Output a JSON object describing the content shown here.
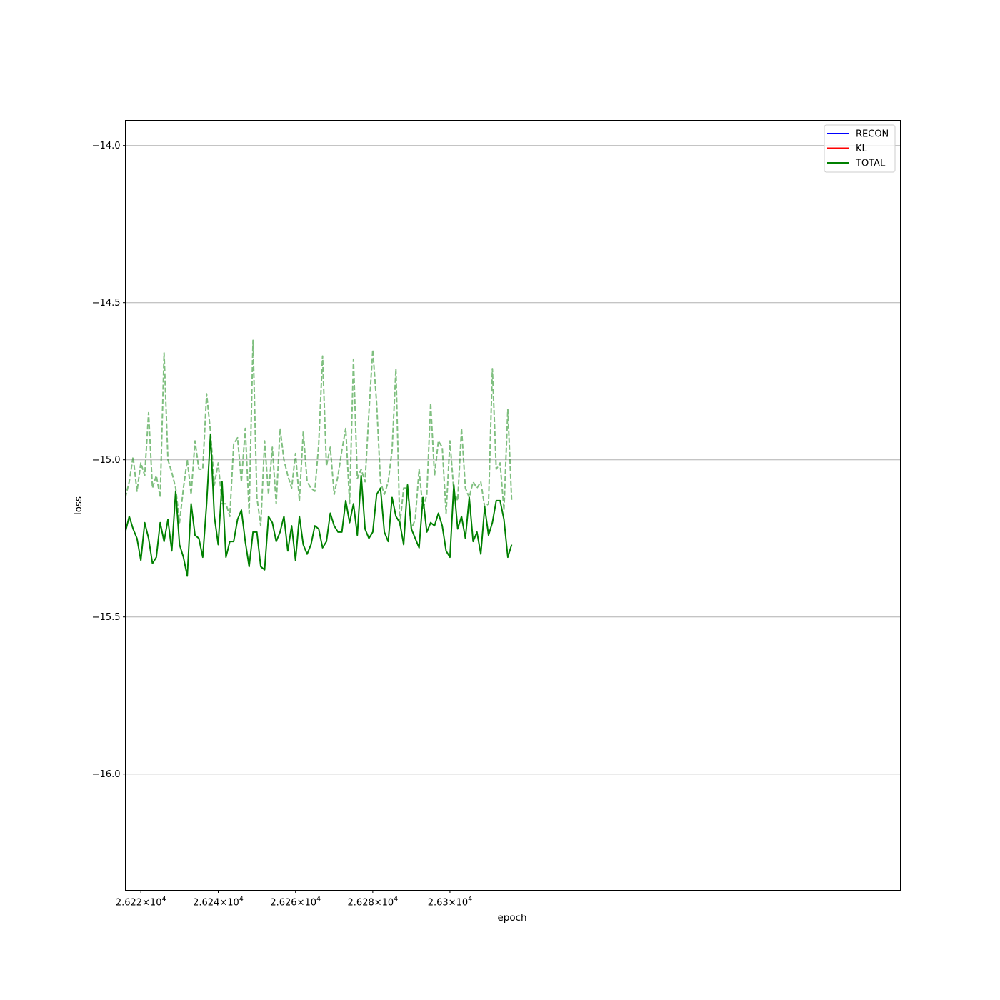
{
  "chart_data": {
    "type": "line",
    "xscale": "log",
    "xlabel": "epoch",
    "ylabel": "loss",
    "xlim": [
      26216,
      26417
    ],
    "ylim": [
      -16.37,
      -13.92
    ],
    "grid": {
      "x": false,
      "y": true
    },
    "legend_position": "top-right",
    "x_ticks": [
      {
        "value": 26220,
        "mantissa": "2.622"
      },
      {
        "value": 26240,
        "mantissa": "2.624"
      },
      {
        "value": 26260,
        "mantissa": "2.626"
      },
      {
        "value": 26280,
        "mantissa": "2.628"
      },
      {
        "value": 26300,
        "mantissa": "2.63"
      }
    ],
    "x_tick_suffix": "×10",
    "x_tick_exponent": "4",
    "y_ticks": [
      {
        "value": -14.0,
        "label": "−14.0"
      },
      {
        "value": -14.5,
        "label": "−14.5"
      },
      {
        "value": -15.0,
        "label": "−15.0"
      },
      {
        "value": -15.5,
        "label": "−15.5"
      },
      {
        "value": -16.0,
        "label": "−16.0"
      }
    ],
    "legend": [
      {
        "name": "RECON",
        "color": "#0000ff"
      },
      {
        "name": "KL",
        "color": "#ff0000"
      },
      {
        "name": "TOTAL",
        "color": "#008000"
      }
    ],
    "x_start": 26216,
    "x_step": 1,
    "series": [
      {
        "name": "TOTAL",
        "color": "#008000",
        "style": "solid",
        "values": [
          -15.23,
          -15.18,
          -15.22,
          -15.25,
          -15.32,
          -15.2,
          -15.25,
          -15.33,
          -15.31,
          -15.2,
          -15.26,
          -15.19,
          -15.29,
          -15.1,
          -15.27,
          -15.31,
          -15.37,
          -15.14,
          -15.24,
          -15.25,
          -15.31,
          -15.14,
          -14.92,
          -15.18,
          -15.27,
          -15.07,
          -15.31,
          -15.26,
          -15.26,
          -15.19,
          -15.16,
          -15.26,
          -15.34,
          -15.23,
          -15.23,
          -15.34,
          -15.35,
          -15.18,
          -15.2,
          -15.26,
          -15.23,
          -15.18,
          -15.29,
          -15.21,
          -15.32,
          -15.18,
          -15.27,
          -15.3,
          -15.27,
          -15.21,
          -15.22,
          -15.28,
          -15.26,
          -15.17,
          -15.21,
          -15.23,
          -15.23,
          -15.13,
          -15.2,
          -15.14,
          -15.24,
          -15.05,
          -15.22,
          -15.25,
          -15.23,
          -15.11,
          -15.09,
          -15.23,
          -15.26,
          -15.12,
          -15.18,
          -15.2,
          -15.27,
          -15.08,
          -15.22,
          -15.25,
          -15.28,
          -15.12,
          -15.23,
          -15.2,
          -15.21,
          -15.17,
          -15.21,
          -15.29,
          -15.31,
          -15.08,
          -15.22,
          -15.18,
          -15.25,
          -15.12,
          -15.26,
          -15.23,
          -15.3,
          -15.15,
          -15.24,
          -15.2,
          -15.13,
          -15.13,
          -15.19,
          -15.31,
          -15.27
        ]
      },
      {
        "name": "",
        "color": "#008000",
        "style": "dashed",
        "opacity": 0.5,
        "values": [
          -15.12,
          -15.07,
          -14.99,
          -15.1,
          -15.01,
          -15.05,
          -14.85,
          -15.09,
          -15.05,
          -15.12,
          -14.66,
          -15.0,
          -15.04,
          -15.09,
          -15.2,
          -15.09,
          -15.0,
          -15.11,
          -14.94,
          -15.03,
          -15.03,
          -14.79,
          -14.91,
          -15.08,
          -15.01,
          -15.14,
          -15.14,
          -15.18,
          -14.95,
          -14.93,
          -15.07,
          -14.9,
          -15.17,
          -14.62,
          -15.12,
          -15.21,
          -14.94,
          -15.11,
          -14.96,
          -15.14,
          -14.9,
          -15.0,
          -15.05,
          -15.09,
          -14.98,
          -15.13,
          -14.91,
          -15.07,
          -15.09,
          -15.1,
          -14.95,
          -14.67,
          -15.02,
          -14.96,
          -15.11,
          -15.05,
          -14.97,
          -14.9,
          -15.14,
          -14.68,
          -15.06,
          -15.03,
          -15.07,
          -14.85,
          -14.65,
          -14.82,
          -15.07,
          -15.11,
          -15.07,
          -14.97,
          -14.71,
          -15.21,
          -15.09,
          -15.09,
          -15.22,
          -15.19,
          -15.03,
          -15.16,
          -15.11,
          -14.82,
          -15.05,
          -14.94,
          -14.96,
          -15.17,
          -14.94,
          -15.1,
          -15.13,
          -14.9,
          -15.09,
          -15.12,
          -15.07,
          -15.09,
          -15.07,
          -15.15,
          -15.14,
          -14.71,
          -15.03,
          -15.01,
          -15.16,
          -14.84,
          -15.13
        ]
      }
    ]
  }
}
